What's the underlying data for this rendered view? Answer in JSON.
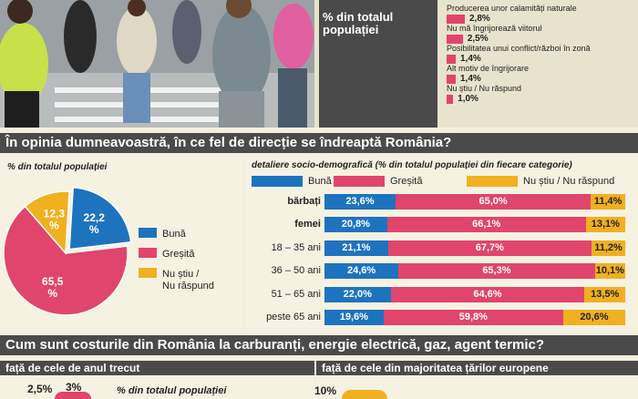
{
  "top": {
    "pct_label": "% din totalul populației",
    "reasons": [
      {
        "label": "Producerea unor calamități naturale",
        "value": "2,8%",
        "num": 2.8
      },
      {
        "label": "Nu mă îngrijorează viitorul",
        "value": "2,5%",
        "num": 2.5
      },
      {
        "label": "Posibilitatea unui conflict/război în zonă",
        "value": "1,4%",
        "num": 1.4
      },
      {
        "label": "Alt motiv de îngrijorare",
        "value": "1,4%",
        "num": 1.4
      },
      {
        "label": "Nu știu / Nu răspund",
        "value": "1,0%",
        "num": 1.0
      }
    ]
  },
  "section1": {
    "title": "În opinia dumneavoastră, în ce fel de direcție se îndreaptă România?",
    "left_caption": "% din totalul populației",
    "right_caption": "detaliere socio-demografică (% din totalul populației din fiecare categorie)"
  },
  "colors": {
    "buna": "#1e73be",
    "gresita": "#e0456b",
    "nustiu": "#f0b020",
    "dark": "#4a4a4a"
  },
  "chart_data": [
    {
      "type": "pie",
      "labels": [
        "Bună",
        "Greșită",
        "Nu știu / Nu răspund"
      ],
      "values": [
        22.2,
        65.5,
        12.3
      ],
      "value_labels": [
        "22,2 %",
        "65,5 %",
        "12,3 %"
      ],
      "legend": [
        "Bună",
        "Greșită",
        "Nu știu / Nu răspund"
      ]
    },
    {
      "type": "bar",
      "stacked": true,
      "orientation": "horizontal",
      "legend": [
        "Bună",
        "Greșită",
        "Nu știu / Nu răspund"
      ],
      "categories": [
        "bărbați",
        "femei",
        "18 – 35 ani",
        "36 – 50 ani",
        "51 – 65 ani",
        "peste 65 ani"
      ],
      "series": [
        {
          "name": "Bună",
          "values": [
            23.6,
            20.8,
            21.1,
            24.6,
            22.0,
            19.6
          ],
          "labels": [
            "23,6%",
            "20,8%",
            "21,1%",
            "24,6%",
            "22,0%",
            "19,6%"
          ]
        },
        {
          "name": "Greșită",
          "values": [
            65.0,
            66.1,
            67.7,
            65.3,
            64.6,
            59.8
          ],
          "labels": [
            "65,0%",
            "66,1%",
            "67,7%",
            "65,3%",
            "64,6%",
            "59,8%"
          ]
        },
        {
          "name": "Nu știu / Nu răspund",
          "values": [
            11.4,
            13.1,
            11.2,
            10.1,
            13.5,
            20.6
          ],
          "labels": [
            "11,4%",
            "13,1%",
            "11,2%",
            "10,1%",
            "13,5%",
            "20,6%"
          ]
        }
      ]
    }
  ],
  "section2": {
    "title": "Cum sunt costurile din România la carburanți, energie electrică, gaz, agent termic?",
    "left_sub": "față de cele de anul trecut",
    "right_sub": "față de cele din majoritatea țărilor europene",
    "left_values": [
      "2,5%",
      "3%"
    ],
    "left_caption": "% din totalul populației",
    "right_value": "10%"
  }
}
